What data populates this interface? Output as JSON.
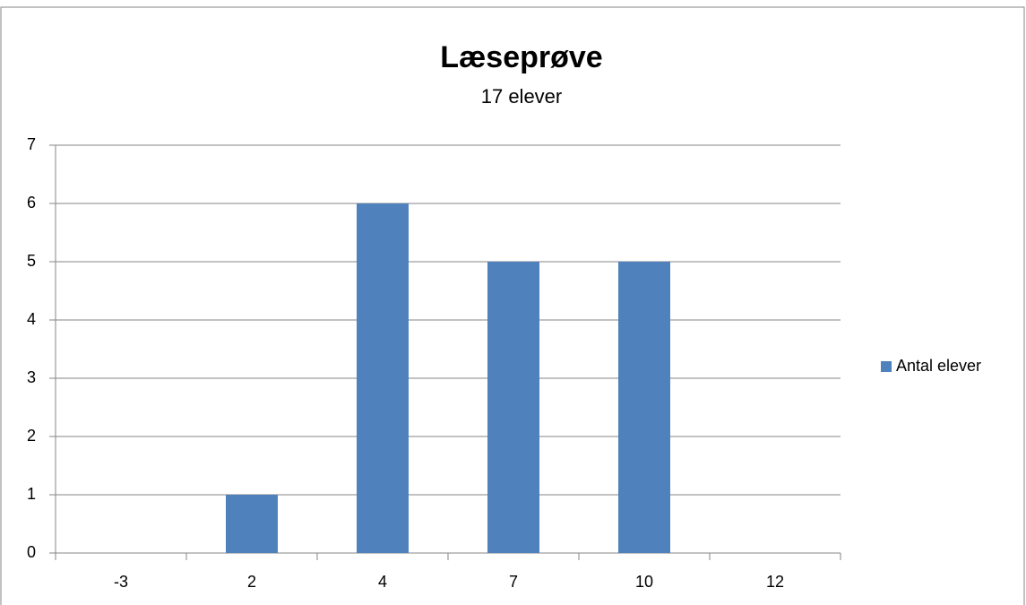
{
  "chart_data": {
    "type": "bar",
    "title": "Læseprøve",
    "subtitle": "17 elever",
    "categories": [
      "-3",
      "2",
      "4",
      "7",
      "10",
      "12"
    ],
    "series": [
      {
        "name": "Antal elever",
        "color": "#4f81bd",
        "values": [
          0,
          1,
          6,
          5,
          5,
          0
        ]
      }
    ],
    "ylim": [
      0,
      7
    ],
    "yticks": [
      0,
      1,
      2,
      3,
      4,
      5,
      6,
      7
    ],
    "grid": true,
    "legend": "right"
  }
}
